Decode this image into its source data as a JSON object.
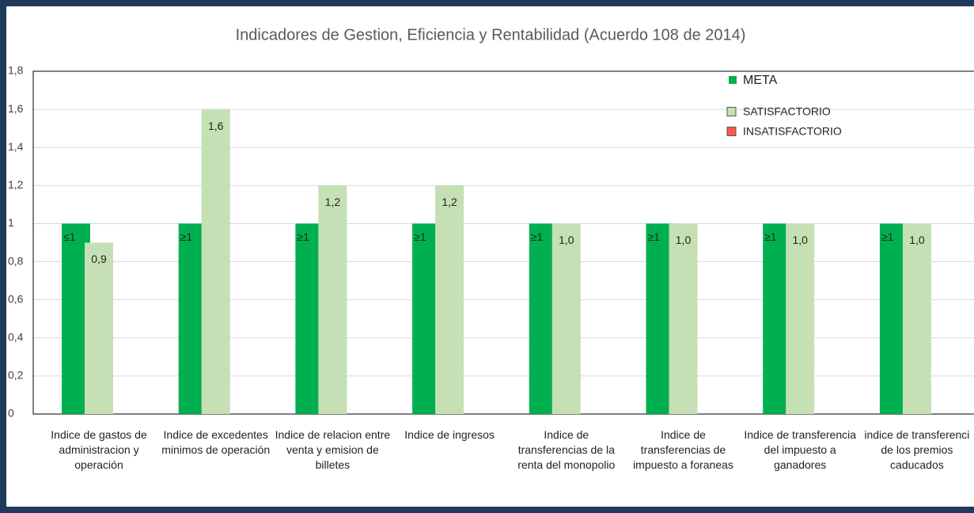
{
  "chart_data": {
    "type": "bar",
    "title": "Indicadores de Gestion, Eficiencia y Rentabilidad (Acuerdo 108 de 2014)",
    "categories": [
      "Indice de gastos de administracion y operación",
      "Indice de excedentes minimos de operación",
      "Indice de relacion entre venta y emision de billetes",
      "Indice de ingresos",
      "Indice de transferencias de la renta del monopolio",
      "Indice de transferencias de impuesto a foraneas",
      "Indice de transferencia del impuesto a ganadores",
      "indice de transferenci de los premios caducados"
    ],
    "series": [
      {
        "name": "META",
        "color": "#00b050",
        "values": [
          1,
          1,
          1,
          1,
          1,
          1,
          1,
          1
        ],
        "value_labels": [
          "≤1",
          "≥1",
          "≥1",
          "≥1",
          "≥1",
          "≥1",
          "≥1",
          "≥1"
        ]
      },
      {
        "name": "SATISFACTORIO",
        "color": "#c5e0b4",
        "values": [
          0.9,
          1.6,
          1.2,
          1.2,
          1.0,
          1.0,
          1.0,
          1.0
        ],
        "value_labels": [
          "0,9",
          "1,6",
          "1,2",
          "1,2",
          "1,0",
          "1,0",
          "1,0",
          "1,0"
        ]
      },
      {
        "name": "INSATISFACTORIO",
        "color": "#ff5a4a",
        "values": [
          null,
          null,
          null,
          null,
          null,
          null,
          null,
          null
        ]
      }
    ],
    "ylim": [
      0,
      1.8
    ],
    "yticks": [
      0,
      {
        "value": 0.2,
        "label": "0,2"
      },
      {
        "value": 0.4,
        "label": "0,4"
      },
      {
        "value": 0.6,
        "label": "0,6"
      },
      {
        "value": 0.8,
        "label": "0,8"
      },
      1,
      {
        "value": 1.2,
        "label": "1,2"
      },
      {
        "value": 1.4,
        "label": "1,4"
      },
      {
        "value": 1.6,
        "label": "1,6"
      },
      {
        "value": 1.8,
        "label": "1,8"
      }
    ],
    "grid": true,
    "legend": "top-right"
  }
}
